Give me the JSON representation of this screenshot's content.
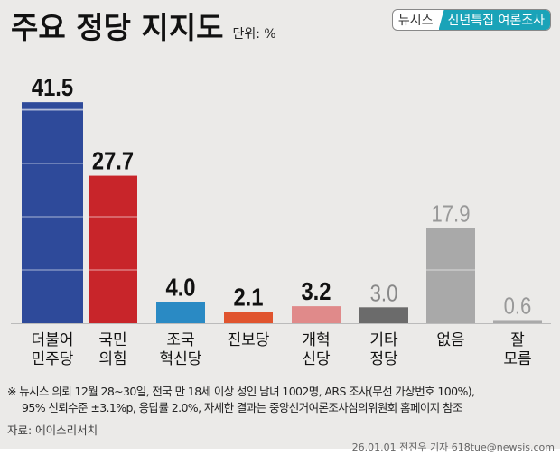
{
  "header": {
    "title": "주요 정당 지지도",
    "unit": "단위: %",
    "badge_brand": "뉴시스",
    "badge_label": "신년특집 여론조사"
  },
  "chart_data": {
    "type": "bar",
    "categories": [
      "더불어\n민주당",
      "국민\n의힘",
      "조국\n혁신당",
      "진보당",
      "개혁\n신당",
      "기타\n정당",
      "없음",
      "잘\n모름"
    ],
    "values": [
      41.5,
      27.7,
      4.0,
      2.1,
      3.2,
      3.0,
      17.9,
      0.6
    ],
    "colors": [
      "#2e4a9a",
      "#c8252a",
      "#2a8ac4",
      "#e0542e",
      "#e08a8a",
      "#6b6b6b",
      "#a9a9a9",
      "#a9a9a9"
    ],
    "label_colors": [
      "#111",
      "#111",
      "#111",
      "#111",
      "#111",
      "#888",
      "#999",
      "#999"
    ],
    "ylim": [
      0,
      45
    ],
    "grid": false
  },
  "footnote": {
    "line1": "※ 뉴시스 의뢰 12월 28~30일, 전국 만 18세 이상 성인 남녀 1002명, ARS 조사(무선 가상번호 100%),",
    "line2": "95% 신뢰수준 ±3.1%p, 응답률 2.0%, 자세한 결과는 중앙선거여론조사심의위원회 홈페이지 참조"
  },
  "source": "자료: 에이스리서치",
  "credit": "26.01.01 전진우 기자 618tue@newsis.com",
  "watermark": "뉴시스"
}
